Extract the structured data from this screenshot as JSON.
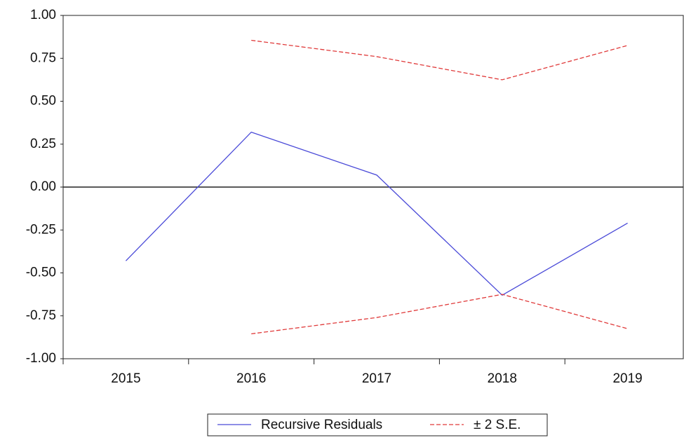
{
  "chart_data": {
    "type": "line",
    "categories": [
      "2015",
      "2016",
      "2017",
      "2018",
      "2019"
    ],
    "series": [
      {
        "name": "Recursive Residuals",
        "color": "#4a4ad8",
        "values": [
          -0.43,
          0.32,
          0.07,
          -0.63,
          -0.21
        ]
      },
      {
        "name": "± 2 S.E.",
        "color": "#e03a3a",
        "dashed": true,
        "values": [
          null,
          0.855,
          0.76,
          0.625,
          0.825
        ],
        "lower": [
          null,
          -0.855,
          -0.76,
          -0.625,
          -0.825
        ]
      }
    ],
    "ylim": [
      -1,
      1
    ],
    "yticks": [
      {
        "value": -1,
        "label": "-1.00"
      },
      {
        "value": -0.75,
        "label": "-0.75"
      },
      {
        "value": -0.5,
        "label": "-0.50"
      },
      {
        "value": -0.25,
        "label": "-0.25"
      },
      {
        "value": 0,
        "label": "0.00"
      },
      {
        "value": 0.25,
        "label": "0.25"
      },
      {
        "value": 0.5,
        "label": "0.50"
      },
      {
        "value": 0.75,
        "label": "0.75"
      },
      {
        "value": 1,
        "label": "1.00"
      }
    ],
    "hline": 0,
    "legend": "bottom"
  }
}
